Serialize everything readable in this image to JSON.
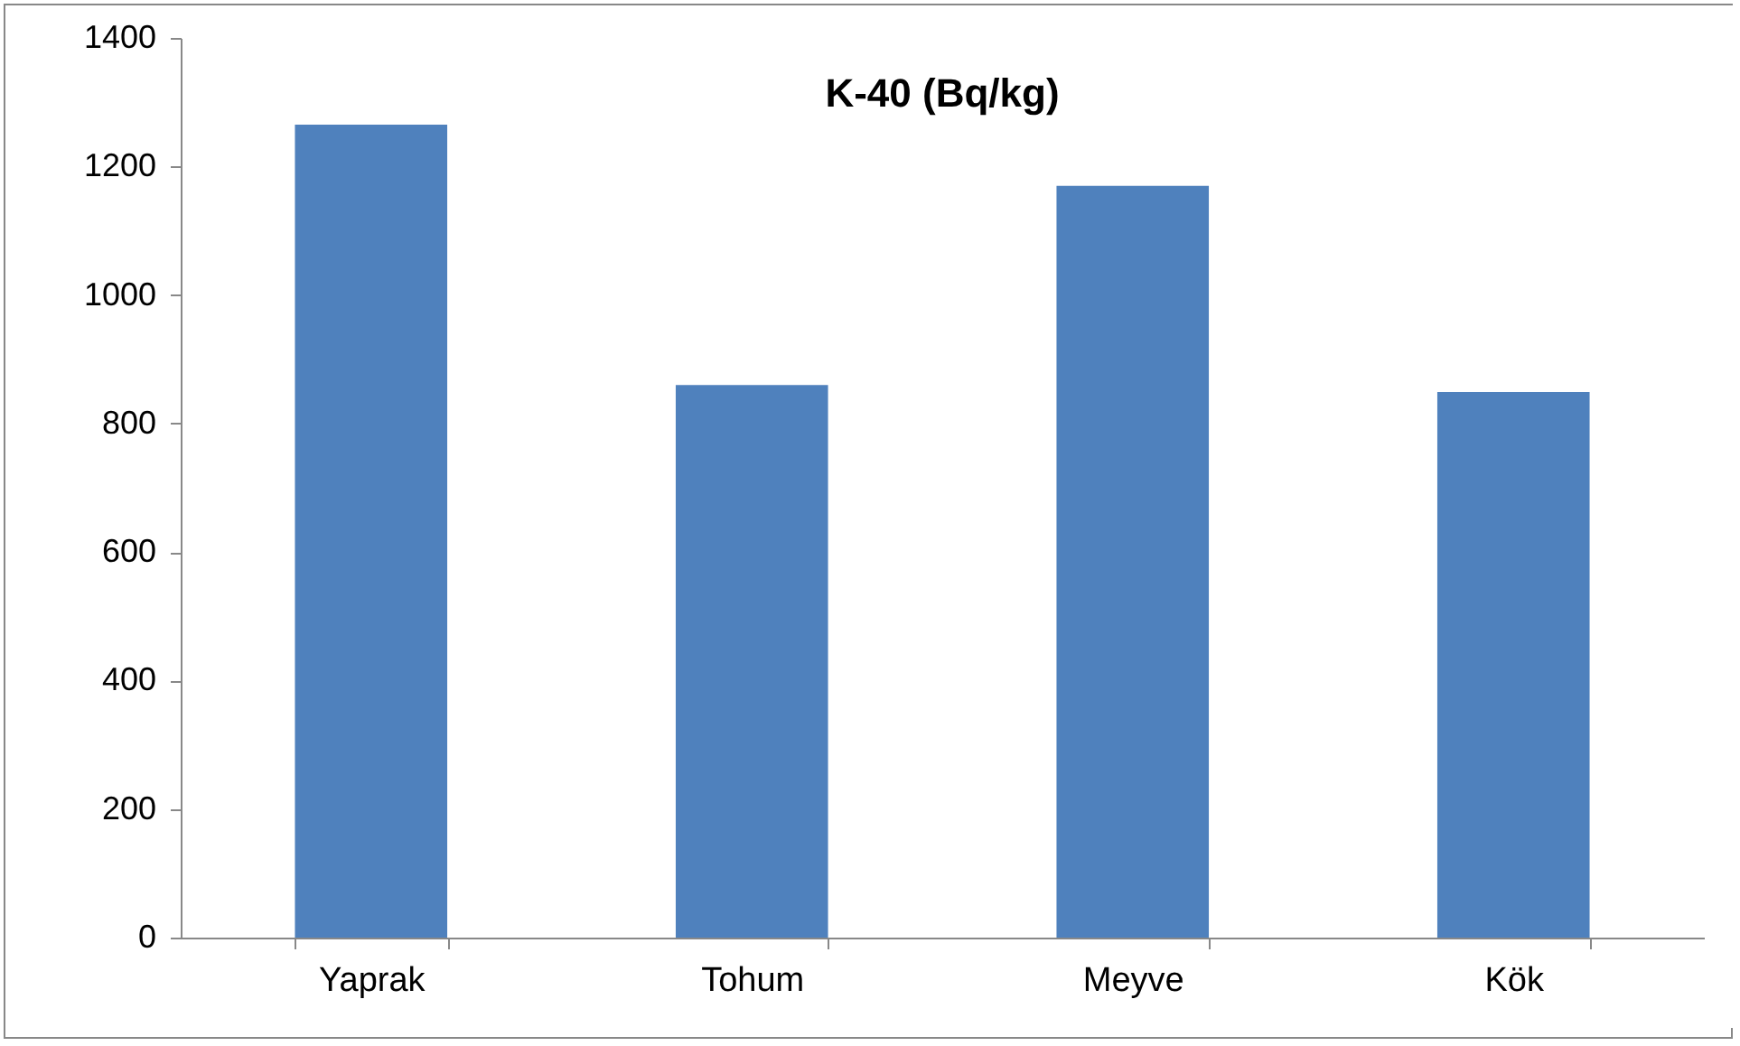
{
  "chart_data": {
    "type": "bar",
    "title": "K-40 (Bq/kg)",
    "categories": [
      "Yaprak",
      "Tohum",
      "Meyve",
      "Kök"
    ],
    "values": [
      1265,
      860,
      1170,
      849
    ],
    "color": "#4f81bd",
    "ylim": [
      0,
      1400
    ],
    "yticks": [
      0,
      200,
      400,
      600,
      800,
      1000,
      1200,
      1400
    ],
    "grid": false
  }
}
